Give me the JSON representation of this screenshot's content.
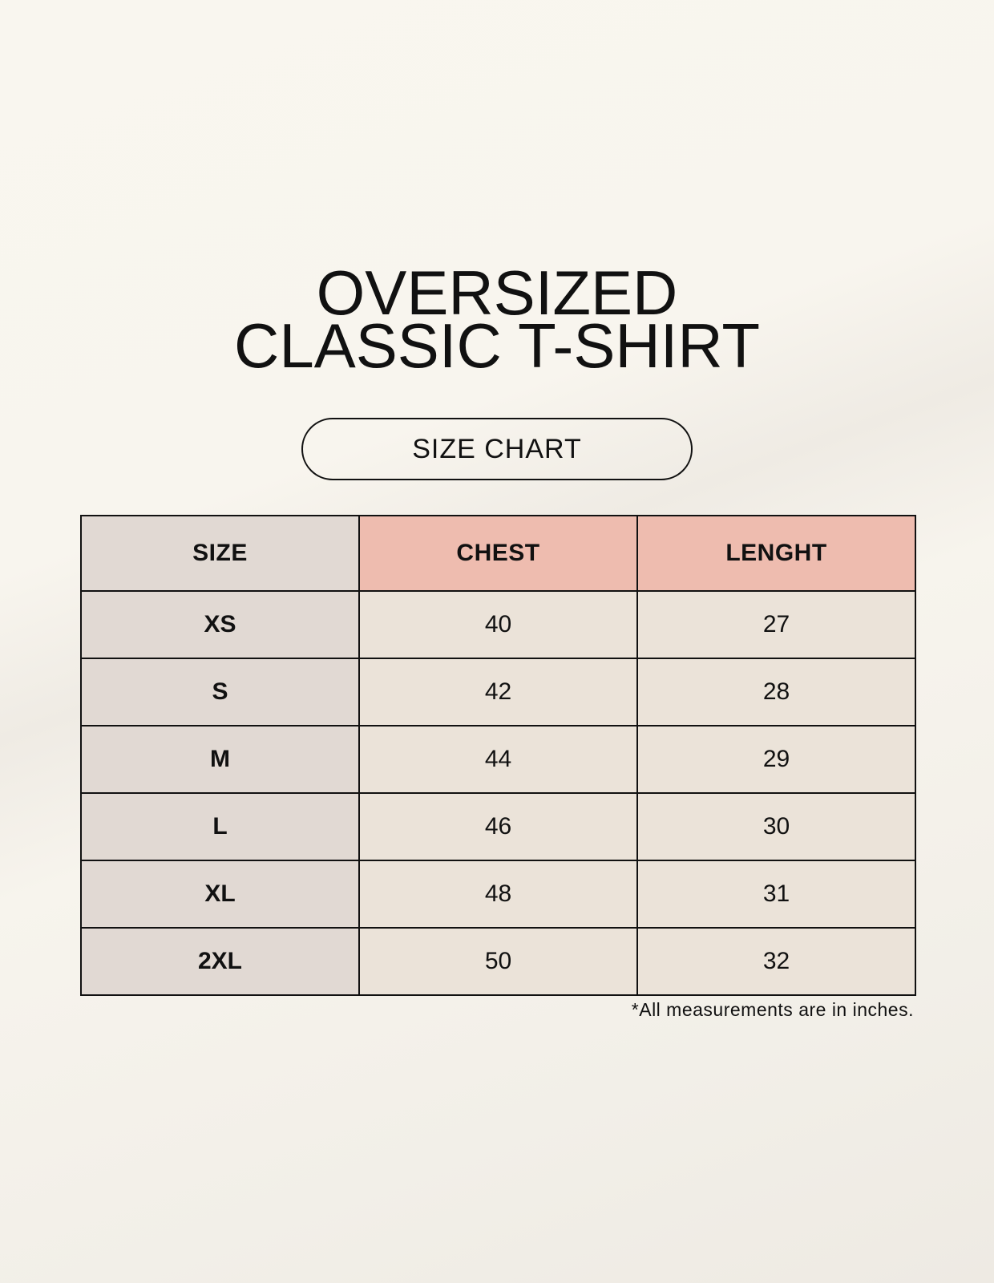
{
  "title_line1": "OVERSIZED",
  "title_line2": "CLASSIC T-SHIRT",
  "badge": "SIZE CHART",
  "table": {
    "headers": [
      "SIZE",
      "CHEST",
      "LENGHT"
    ],
    "rows": [
      [
        "XS",
        "40",
        "27"
      ],
      [
        "S",
        "42",
        "28"
      ],
      [
        "M",
        "44",
        "29"
      ],
      [
        "L",
        "46",
        "30"
      ],
      [
        "XL",
        "48",
        "31"
      ],
      [
        "2XL",
        "50",
        "32"
      ]
    ]
  },
  "footnote": "*All measurements are in inches.",
  "colors": {
    "size_column": "#e1d9d3",
    "header_accent": "#eebcaf",
    "value_cells": "#ebe3d9"
  }
}
